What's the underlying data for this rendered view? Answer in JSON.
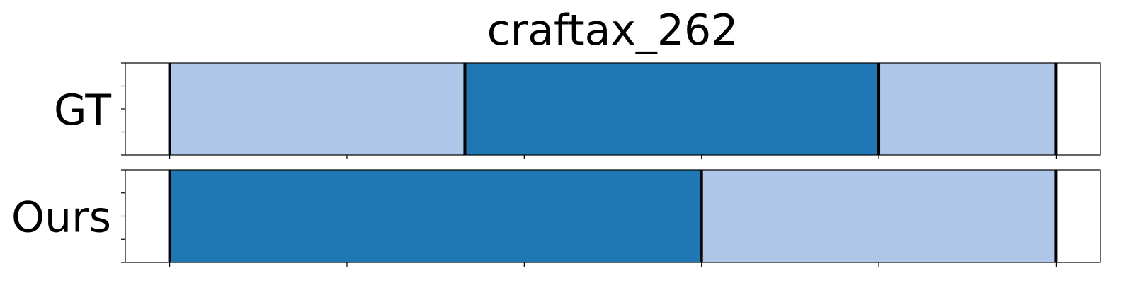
{
  "chart_data": {
    "type": "bar",
    "title": "craftax_262",
    "xlim": [
      -5,
      105
    ],
    "rows": [
      {
        "label": "GT",
        "segments": [
          {
            "start": 0,
            "end": 33.3,
            "color": "#aec7e8"
          },
          {
            "start": 33.3,
            "end": 80,
            "color": "#1f77b4"
          },
          {
            "start": 80,
            "end": 100,
            "color": "#aec7e8"
          }
        ],
        "boundaries": [
          0,
          33.3,
          80,
          100
        ]
      },
      {
        "label": "Ours",
        "segments": [
          {
            "start": 0,
            "end": 60,
            "color": "#1f77b4"
          },
          {
            "start": 60,
            "end": 100,
            "color": "#aec7e8"
          }
        ],
        "boundaries": [
          0,
          60,
          100
        ]
      }
    ],
    "x_ticks": [
      0,
      20,
      40,
      60,
      80,
      100
    ],
    "show_tick_labels": false,
    "grid": false,
    "legend": "none"
  }
}
